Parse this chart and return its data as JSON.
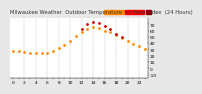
{
  "title_left": "Milwaukee Weather  Outdoor Temperature",
  "title_right": "(24 Hours)",
  "hours": [
    0,
    1,
    2,
    3,
    4,
    5,
    6,
    7,
    8,
    9,
    10,
    11,
    12,
    13,
    14,
    15,
    16,
    17,
    18,
    19,
    20,
    21,
    22,
    23
  ],
  "temp": [
    28,
    27,
    26,
    25,
    24,
    24,
    25,
    27,
    32,
    37,
    44,
    51,
    58,
    63,
    66,
    64,
    60,
    57,
    53,
    48,
    43,
    39,
    35,
    31
  ],
  "heat_index": [
    null,
    null,
    null,
    null,
    null,
    null,
    null,
    null,
    null,
    null,
    null,
    null,
    62,
    70,
    74,
    72,
    67,
    62,
    55,
    50,
    null,
    null,
    null,
    null
  ],
  "temp_color": "#FF8C00",
  "heat_index_color": "#CC0000",
  "bg_color": "#e8e8e8",
  "plot_bg": "#ffffff",
  "grid_color": "#aaaaaa",
  "ylim": [
    -15,
    80
  ],
  "ytick_vals": [
    -10,
    0,
    10,
    20,
    30,
    40,
    50,
    60,
    70
  ],
  "legend_temp_color": "#FF8C00",
  "legend_hi_color": "#FF0000",
  "title_fontsize": 3.8,
  "axis_fontsize": 3.2,
  "dot_size": 1.0,
  "grid_hours": [
    2,
    4,
    6,
    8,
    10,
    12,
    14,
    16,
    18,
    20,
    22
  ]
}
